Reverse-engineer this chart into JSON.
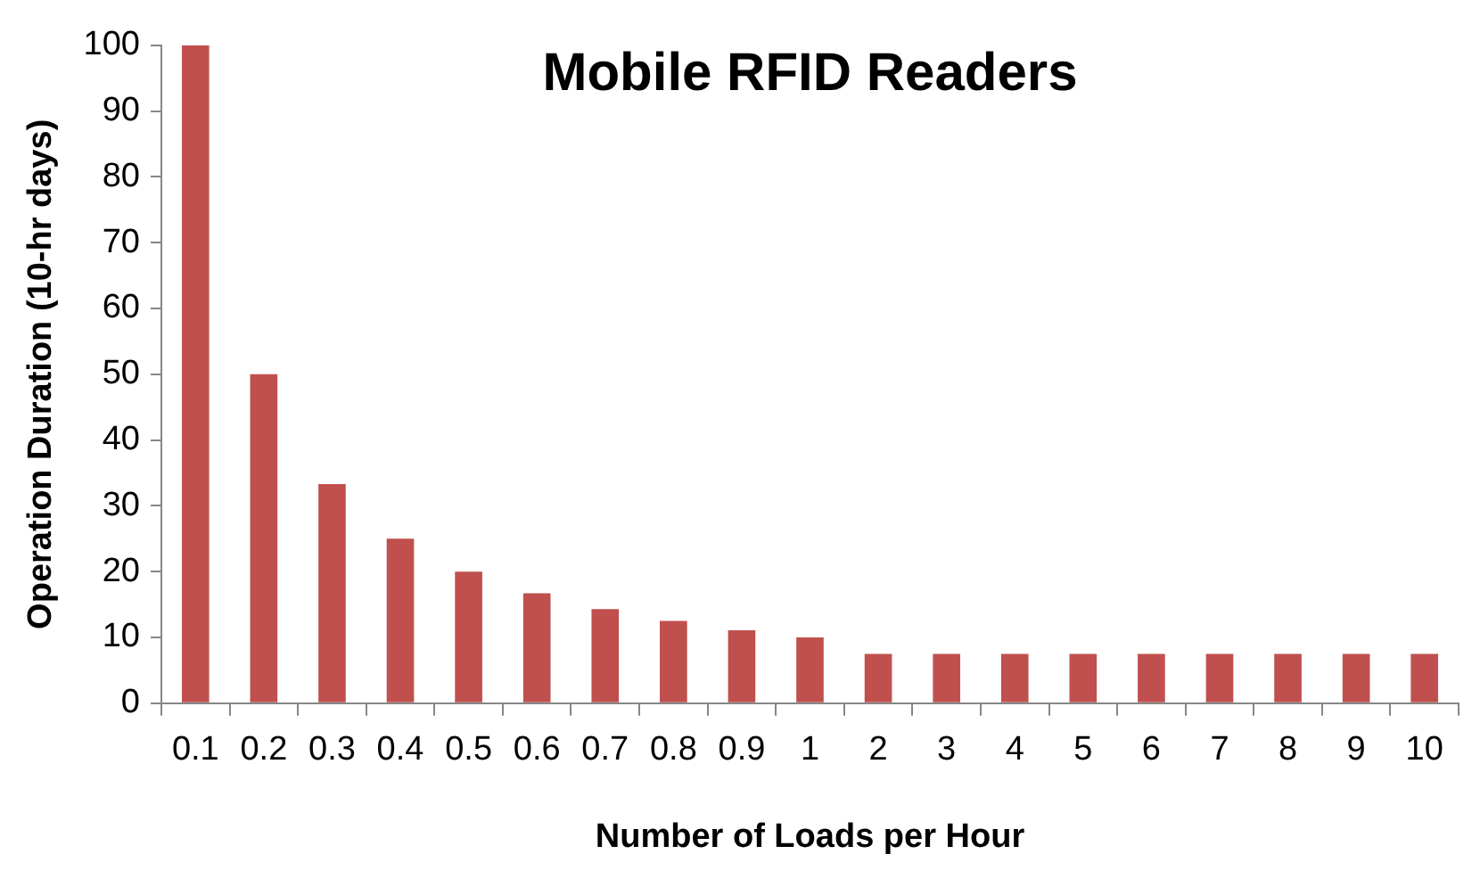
{
  "chart_data": {
    "type": "bar",
    "title": "Mobile RFID Readers",
    "xlabel": "Number of Loads per Hour",
    "ylabel": "Operation Duration (10-hr days)",
    "categories": [
      "0.1",
      "0.2",
      "0.3",
      "0.4",
      "0.5",
      "0.6",
      "0.7",
      "0.8",
      "0.9",
      "1",
      "2",
      "3",
      "4",
      "5",
      "6",
      "7",
      "8",
      "9",
      "10"
    ],
    "values": [
      100,
      50,
      33.3,
      25,
      20,
      16.7,
      14.3,
      12.5,
      11.1,
      10,
      7.5,
      7.5,
      7.5,
      7.5,
      7.5,
      7.5,
      7.5,
      7.5,
      7.5
    ],
    "color": "#c0504d",
    "ylim": [
      0,
      100
    ],
    "yticks": [
      0,
      10,
      20,
      30,
      40,
      50,
      60,
      70,
      80,
      90,
      100
    ],
    "grid": false,
    "legend": false
  }
}
